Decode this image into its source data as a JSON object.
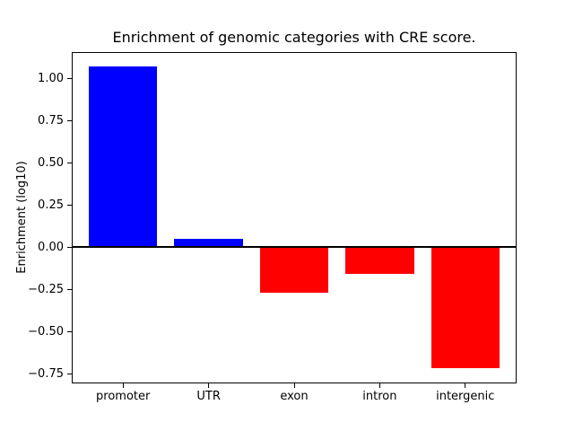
{
  "chart_data": {
    "type": "bar",
    "title": "Enrichment of genomic categories with CRE score.",
    "ylabel": "Enrichment (log10)",
    "xlabel": "",
    "categories": [
      "promoter",
      "UTR",
      "exon",
      "intron",
      "intergenic"
    ],
    "values": [
      1.07,
      0.05,
      -0.27,
      -0.16,
      -0.72
    ],
    "bar_colors": [
      "#0000ff",
      "#0000ff",
      "#ff0000",
      "#ff0000",
      "#ff0000"
    ],
    "positive_color": "#0000ff",
    "negative_color": "#ff0000",
    "zero_line_color": "#000000",
    "bar_width": 0.8,
    "ylim": [
      -0.8095,
      1.1595
    ],
    "xlim": [
      -0.6,
      4.6
    ],
    "yticks": [
      {
        "value": -0.75,
        "label": "−0.75"
      },
      {
        "value": -0.5,
        "label": "−0.50"
      },
      {
        "value": -0.25,
        "label": "−0.25"
      },
      {
        "value": 0.0,
        "label": "0.00"
      },
      {
        "value": 0.25,
        "label": "0.25"
      },
      {
        "value": 0.5,
        "label": "0.50"
      },
      {
        "value": 0.75,
        "label": "0.75"
      },
      {
        "value": 1.0,
        "label": "1.00"
      }
    ],
    "grid": false,
    "legend": false
  }
}
